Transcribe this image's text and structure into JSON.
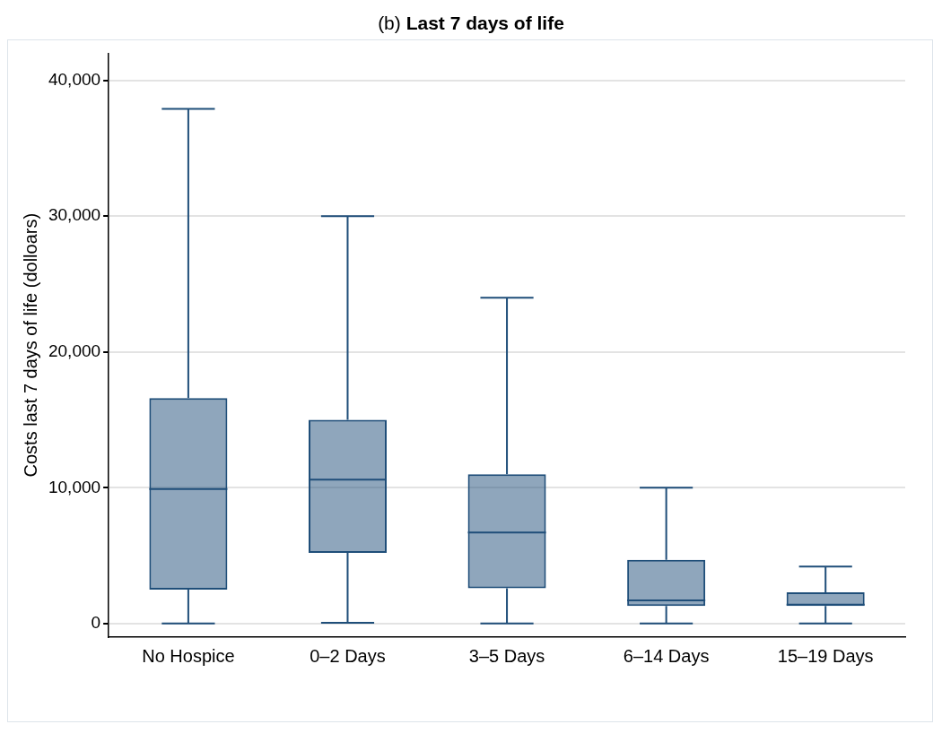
{
  "chart_data": {
    "type": "box",
    "title": "(b) Last 7 days of life",
    "ylabel": "Costs last 7 days of life (dolloars)",
    "categories": [
      "No Hospice",
      "0–2 Days",
      "3–5 Days",
      "6–14 Days",
      "15–19 Days"
    ],
    "color": "#1f4e79",
    "boxes": [
      {
        "low": 0,
        "q1": 2500,
        "median": 9900,
        "q3": 16600,
        "high": 37900
      },
      {
        "low": 50,
        "q1": 5200,
        "median": 10600,
        "q3": 15000,
        "high": 30000
      },
      {
        "low": 0,
        "q1": 2600,
        "median": 6700,
        "q3": 11000,
        "high": 24000
      },
      {
        "low": 0,
        "q1": 1300,
        "median": 1700,
        "q3": 4700,
        "high": 10000
      },
      {
        "low": 0,
        "q1": 1300,
        "median": 1400,
        "q3": 2300,
        "high": 4200
      }
    ],
    "ylim": [
      -1000,
      42000
    ],
    "yticks": [
      0,
      {
        "value": 10000,
        "label": "10,000"
      },
      {
        "value": 20000,
        "label": "20,000"
      },
      {
        "value": 30000,
        "label": "30,000"
      },
      {
        "value": 40000,
        "label": "40,000"
      }
    ],
    "grid": "y",
    "legend": false
  }
}
